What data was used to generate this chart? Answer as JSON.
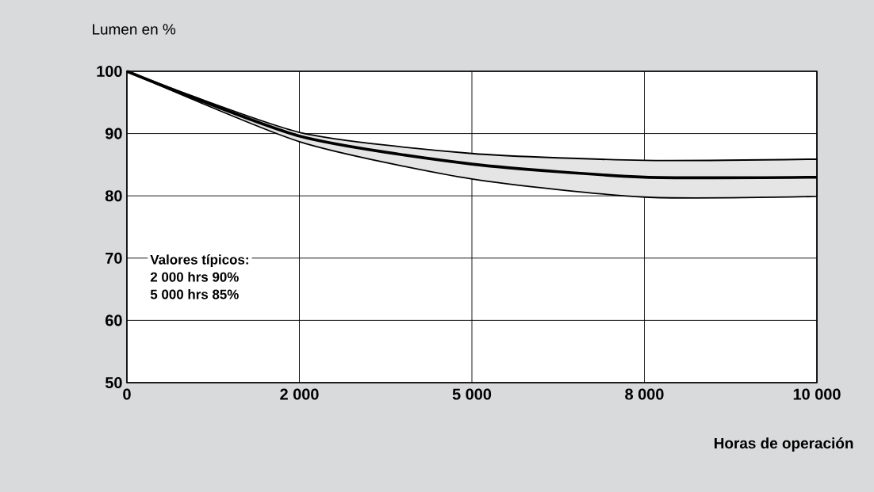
{
  "chart_data": {
    "type": "line",
    "xlabel": "Horas de operación",
    "ylabel": "Lumen en %",
    "categories": [
      "0",
      "2 000",
      "5 000",
      "8 000",
      "10 000"
    ],
    "series": [
      {
        "color": "#000000",
        "values": [
          100,
          89.6,
          85.1,
          83,
          83
        ],
        "lower": [
          100,
          88.7,
          82.7,
          79.8,
          79.9
        ],
        "upper": [
          100,
          90.2,
          86.8,
          85.7,
          85.9
        ]
      }
    ],
    "ylim": [
      50,
      100
    ],
    "yticks": [
      50,
      60,
      70,
      80,
      90,
      100
    ],
    "grid": true,
    "marker": "none",
    "line_style": "solid",
    "annotations": [
      "**Valores típicos:**",
      "**2 000 hrs 90%**",
      "**5 000 hrs 85%**"
    ]
  }
}
